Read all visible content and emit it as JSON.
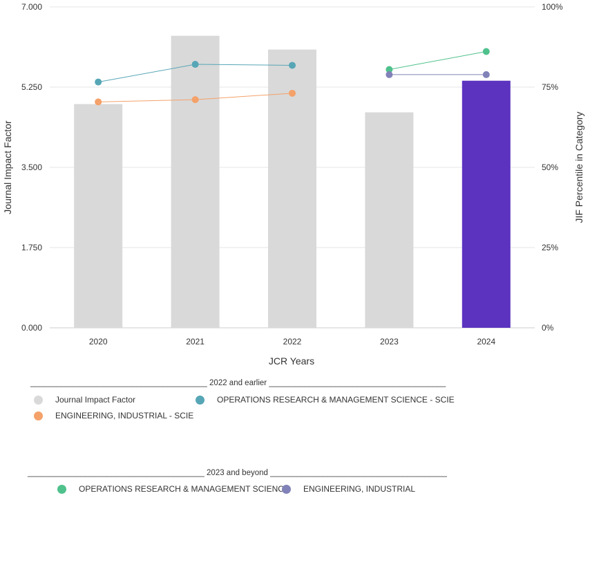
{
  "chart_data": {
    "type": "bar",
    "xlabel": "JCR Years",
    "ylabel": "Journal Impact Factor",
    "y2label": "JIF Percentile in Category",
    "categories": [
      "2020",
      "2021",
      "2022",
      "2023",
      "2024"
    ],
    "ylim": [
      0,
      7
    ],
    "y_ticks": [
      "0.000",
      "1.750",
      "3.500",
      "5.250",
      "7.000"
    ],
    "y2lim": [
      0,
      100
    ],
    "y2_ticks": [
      "0%",
      "25%",
      "50%",
      "75%",
      "100%"
    ],
    "grid": true,
    "bars": {
      "name": "Journal Impact Factor",
      "values": [
        4.88,
        6.37,
        6.07,
        4.7,
        5.39
      ],
      "colors": [
        "#d9d9d9",
        "#d9d9d9",
        "#d9d9d9",
        "#d9d9d9",
        "#5c33bf"
      ]
    },
    "series": [
      {
        "name": "OPERATIONS RESEARCH & MANAGEMENT SCIENCE - SCIE",
        "axis": "y2",
        "color": "#57a6b6",
        "x": [
          "2020",
          "2021",
          "2022"
        ],
        "values": [
          76.6,
          82.1,
          81.8
        ]
      },
      {
        "name": "ENGINEERING, INDUSTRIAL - SCIE",
        "axis": "y2",
        "color": "#f4a16a",
        "x": [
          "2020",
          "2021",
          "2022"
        ],
        "values": [
          70.4,
          71.1,
          73.1
        ]
      },
      {
        "name": "OPERATIONS RESEARCH & MANAGEMENT SCIENCE",
        "axis": "y2",
        "color": "#4fc18c",
        "x": [
          "2023",
          "2024"
        ],
        "values": [
          80.5,
          86.1
        ]
      },
      {
        "name": "ENGINEERING, INDUSTRIAL",
        "axis": "y2",
        "color": "#8182b8",
        "x": [
          "2023",
          "2024"
        ],
        "values": [
          78.9,
          78.9
        ]
      }
    ]
  },
  "legend": {
    "group1": {
      "heading": "________________________________________ 2022 and earlier ________________________________________",
      "items": [
        {
          "label": "Journal Impact Factor",
          "color": "#d9d9d9"
        },
        {
          "label": "OPERATIONS RESEARCH & MANAGEMENT SCIENCE - SCIE",
          "color": "#57a6b6"
        },
        {
          "label": "ENGINEERING, INDUSTRIAL - SCIE",
          "color": "#f4a16a"
        }
      ]
    },
    "group2": {
      "heading": "________________________________________ 2023 and beyond ________________________________________",
      "items": [
        {
          "label": "OPERATIONS RESEARCH & MANAGEMENT SCIENCE",
          "color": "#4fc18c"
        },
        {
          "label": "ENGINEERING, INDUSTRIAL",
          "color": "#8182b8"
        }
      ]
    }
  }
}
